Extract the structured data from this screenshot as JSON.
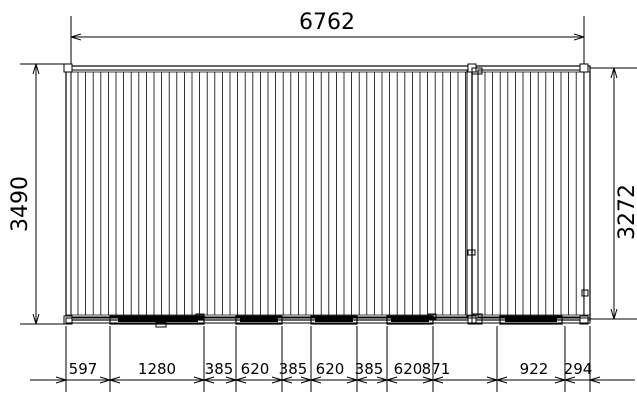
{
  "drawing": {
    "overall_width": "6762",
    "left_height": "3490",
    "right_height": "3272",
    "bottom_dimensions": [
      "597",
      "1280",
      "385",
      "620",
      "385",
      "620",
      "385",
      "620",
      "871",
      "922",
      "294"
    ]
  }
}
